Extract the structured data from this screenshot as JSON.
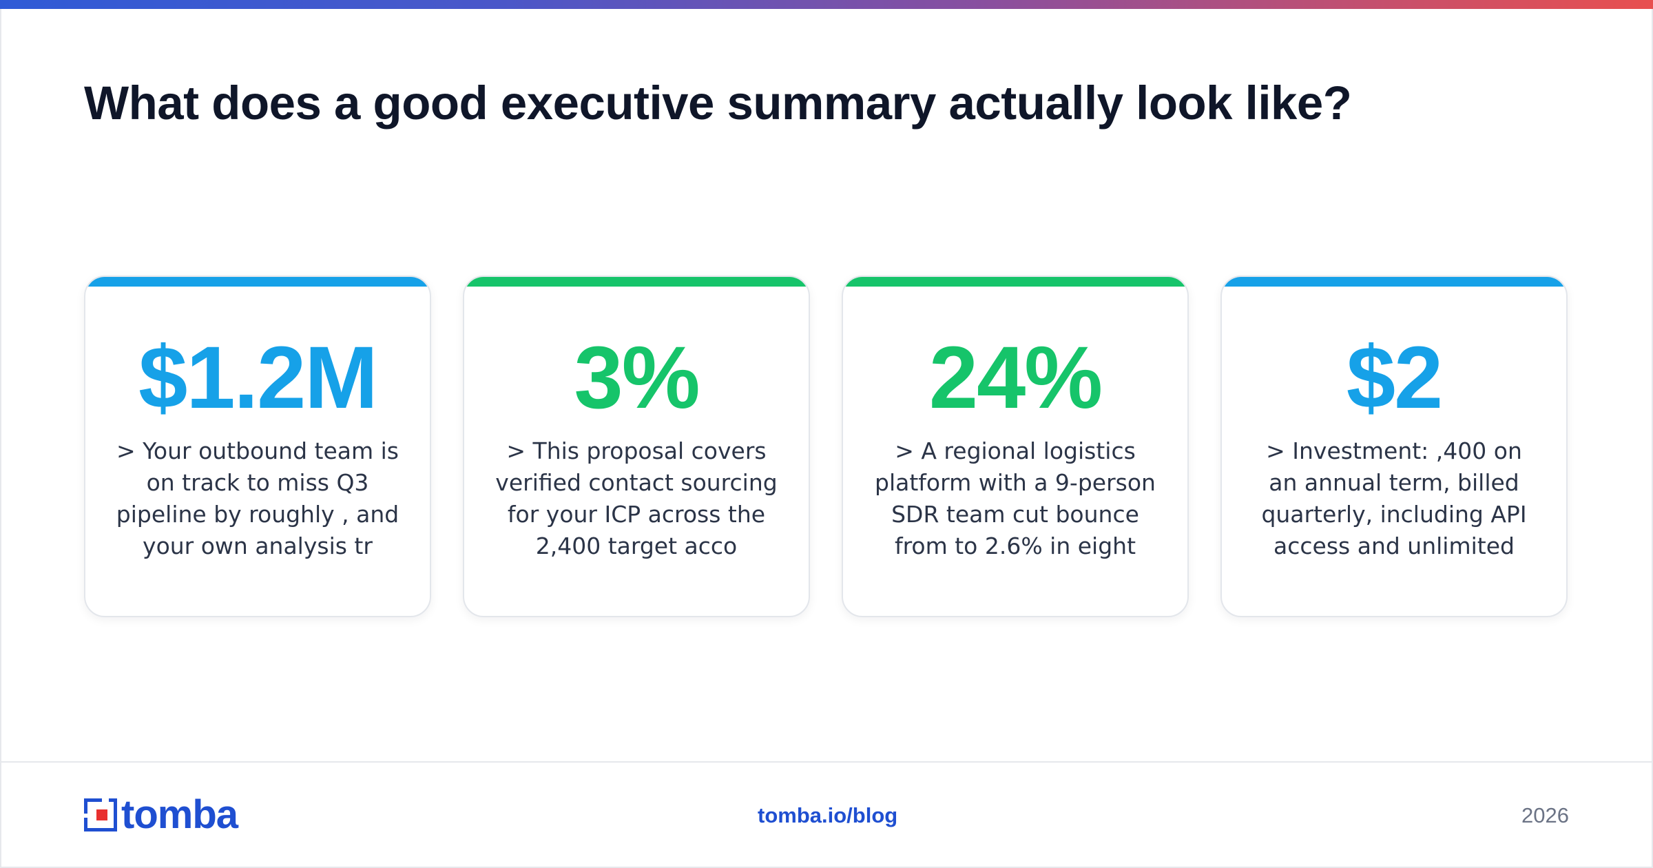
{
  "headline": "What does a good executive summary actually look like?",
  "colors": {
    "blue": "#16a1e8",
    "green": "#16c46a",
    "brand": "#1f4fd1"
  },
  "cards": [
    {
      "value": "$1.2M",
      "text": "> Your outbound team is on track to miss Q3 pipeline by roughly , and your own analysis tr",
      "accent": "blue"
    },
    {
      "value": "3%",
      "text": "> This proposal covers verified contact sourcing for your ICP across the 2,400 target acco",
      "accent": "green"
    },
    {
      "value": "24%",
      "text": "> A regional logistics platform with a 9-person SDR team cut bounce from to 2.6% in eight",
      "accent": "green"
    },
    {
      "value": "$2",
      "text": "> Investment: ,400 on an annual term, billed quarterly, including API access and unlimited",
      "accent": "blue"
    }
  ],
  "footer": {
    "logo_text": "tomba",
    "link": "tomba.io/blog",
    "year": "2026"
  }
}
